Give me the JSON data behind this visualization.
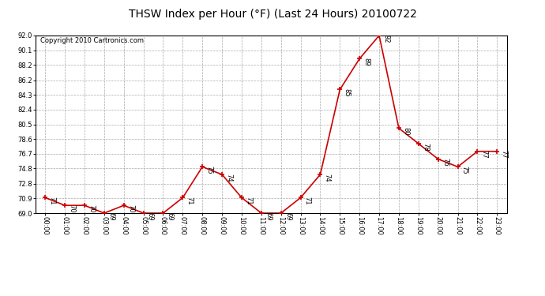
{
  "title": "THSW Index per Hour (°F) (Last 24 Hours) 20100722",
  "copyright": "Copyright 2010 Cartronics.com",
  "hours": [
    "00:00",
    "01:00",
    "02:00",
    "03:00",
    "04:00",
    "05:00",
    "06:00",
    "07:00",
    "08:00",
    "09:00",
    "10:00",
    "11:00",
    "12:00",
    "13:00",
    "14:00",
    "15:00",
    "16:00",
    "17:00",
    "18:00",
    "19:00",
    "20:00",
    "21:00",
    "22:00",
    "23:00"
  ],
  "values": [
    71,
    70,
    70,
    69,
    70,
    69,
    69,
    71,
    75,
    74,
    71,
    69,
    69,
    71,
    74,
    85,
    89,
    92,
    80,
    78,
    76,
    75,
    77,
    77
  ],
  "ylim": [
    69.0,
    92.0
  ],
  "yticks": [
    69.0,
    70.9,
    72.8,
    74.8,
    76.7,
    78.6,
    80.5,
    82.4,
    84.3,
    86.2,
    88.2,
    90.1,
    92.0
  ],
  "line_color": "#cc0000",
  "marker_color": "#cc0000",
  "bg_color": "#ffffff",
  "plot_bg_color": "#ffffff",
  "grid_color": "#aaaaaa",
  "title_fontsize": 10,
  "copyright_fontsize": 6,
  "tick_fontsize": 6,
  "label_fontsize": 6
}
